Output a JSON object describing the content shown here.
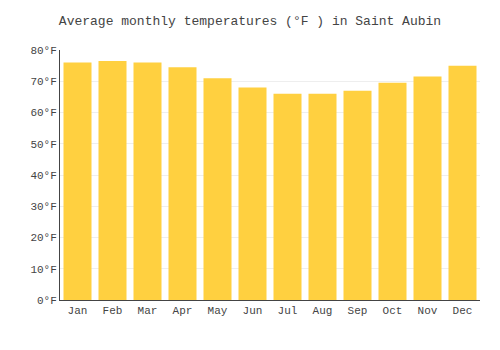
{
  "chart_data": {
    "type": "bar",
    "title": "Average monthly temperatures (°F ) in Saint Aubin",
    "categories": [
      "Jan",
      "Feb",
      "Mar",
      "Apr",
      "May",
      "Jun",
      "Jul",
      "Aug",
      "Sep",
      "Oct",
      "Nov",
      "Dec"
    ],
    "values": [
      76.0,
      76.5,
      76.0,
      74.5,
      71.0,
      68.0,
      66.0,
      66.0,
      67.0,
      69.5,
      71.5,
      75.0
    ],
    "color": "#FFD040",
    "ylim": [
      0,
      80
    ],
    "yticks": [
      {
        "value": 0,
        "label": "0°F"
      },
      {
        "value": 10,
        "label": "10°F"
      },
      {
        "value": 20,
        "label": "20°F"
      },
      {
        "value": 30,
        "label": "30°F"
      },
      {
        "value": 40,
        "label": "40°F"
      },
      {
        "value": 50,
        "label": "50°F"
      },
      {
        "value": 60,
        "label": "60°F"
      },
      {
        "value": 70,
        "label": "70°F"
      },
      {
        "value": 80,
        "label": "80°F"
      }
    ],
    "grid": true
  }
}
